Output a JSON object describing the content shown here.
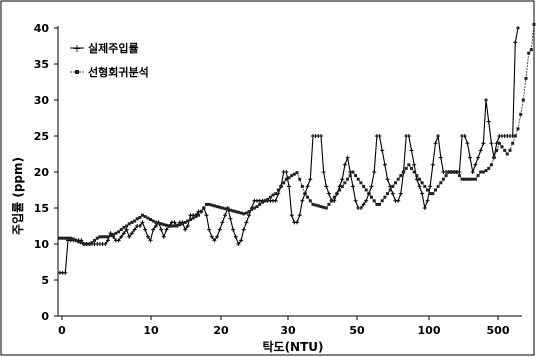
{
  "chart_data": {
    "type": "line",
    "title": "",
    "xlabel": "탁도(NTU)",
    "ylabel": "주입률 (ppm)",
    "ylim": [
      0,
      40
    ],
    "yticks": [
      0,
      5,
      10,
      15,
      20,
      25,
      30,
      35,
      40
    ],
    "xtick_labels": [
      "0",
      "10",
      "20",
      "30",
      "50",
      "100",
      "500"
    ],
    "grid": false,
    "legend_position": "top-left",
    "series": [
      {
        "name": "실제주입률",
        "marker": "plus",
        "color": "#000000",
        "values": [
          6,
          6,
          6,
          10.5,
          10.5,
          10.5,
          10.5,
          10.5,
          10.5,
          10,
          10,
          10,
          10,
          10,
          10,
          10,
          10,
          10,
          10.5,
          11.5,
          11,
          10.5,
          10.5,
          11,
          11.5,
          12,
          11,
          11.5,
          12,
          12.5,
          12.5,
          13,
          12,
          11,
          10.5,
          12,
          12.5,
          13,
          12,
          11,
          12,
          12.5,
          13,
          13,
          12.5,
          13,
          13,
          12,
          12.5,
          14,
          14,
          14,
          14.5,
          14.5,
          15,
          14,
          12,
          11,
          10.5,
          11,
          12,
          13,
          14,
          15,
          13.5,
          12,
          11,
          10,
          10.5,
          12,
          13,
          14,
          15,
          16,
          16,
          16,
          16,
          16,
          16,
          16,
          16,
          16,
          17,
          18,
          20,
          20,
          18,
          14,
          13,
          13,
          14,
          16,
          17,
          18,
          19,
          25,
          25,
          25,
          25,
          20,
          18,
          17,
          16,
          16,
          17,
          18,
          19,
          21,
          22,
          20,
          18,
          16,
          15,
          15,
          15.5,
          16,
          17,
          18,
          20,
          25,
          25,
          23,
          21,
          19,
          18,
          17,
          16,
          16,
          17,
          20,
          25,
          25,
          23,
          21,
          19,
          18,
          17,
          15,
          16,
          18,
          21,
          24,
          25,
          22,
          20,
          20,
          20,
          20,
          20,
          20,
          20,
          25,
          25,
          24,
          22,
          20,
          21,
          22,
          23,
          24,
          30,
          27,
          24,
          22,
          24,
          25,
          25,
          25,
          25,
          25,
          25,
          38,
          40
        ]
      },
      {
        "name": "선형회귀분석",
        "marker": "square",
        "color": "#444444",
        "values": [
          10.8,
          10.8,
          10.8,
          10.8,
          10.8,
          10.7,
          10.5,
          10.3,
          10.2,
          10,
          10,
          10,
          10.2,
          10.5,
          10.8,
          11,
          11,
          11,
          11,
          11.2,
          11.3,
          11.5,
          11.7,
          12,
          12.3,
          12.5,
          12.8,
          13,
          13.2,
          13.5,
          13.7,
          14,
          13.8,
          13.6,
          13.4,
          13.2,
          13,
          12.9,
          12.8,
          12.7,
          12.6,
          12.5,
          12.5,
          12.5,
          12.6,
          12.7,
          12.8,
          13,
          13.2,
          13.4,
          13.6,
          13.8,
          14,
          14.5,
          15,
          15.5,
          15.5,
          15.4,
          15.3,
          15.2,
          15.1,
          15,
          14.9,
          14.8,
          14.7,
          14.6,
          14.5,
          14.4,
          14.3,
          14.2,
          14.3,
          14.5,
          14.8,
          15,
          15.2,
          15.5,
          15.8,
          16,
          16.2,
          16.5,
          16.8,
          17,
          17.5,
          18,
          18.5,
          19,
          19.2,
          19.5,
          19.7,
          19.9,
          19,
          18,
          17,
          16.5,
          16,
          15.5,
          15.4,
          15.3,
          15.2,
          15.1,
          15,
          15.5,
          16,
          16.5,
          17,
          17.5,
          18,
          18.5,
          19,
          19.5,
          20,
          19.5,
          19,
          18.5,
          18,
          17.5,
          17,
          16.5,
          16,
          15.5,
          15.5,
          16,
          16.5,
          17,
          17.5,
          18,
          18.5,
          19,
          19.5,
          20,
          20.5,
          21,
          20.5,
          20,
          19.5,
          19,
          18.5,
          18,
          17.5,
          17,
          17,
          17.5,
          18,
          18.5,
          19,
          19.5,
          20,
          20,
          20,
          20,
          19.5,
          19,
          19,
          19,
          19,
          19,
          19,
          19.5,
          20,
          20,
          20.2,
          20.5,
          21,
          22,
          23,
          24,
          23.5,
          23,
          22.5,
          23,
          24,
          25,
          26,
          28,
          30,
          33,
          36.5,
          37,
          40.5
        ]
      }
    ]
  }
}
